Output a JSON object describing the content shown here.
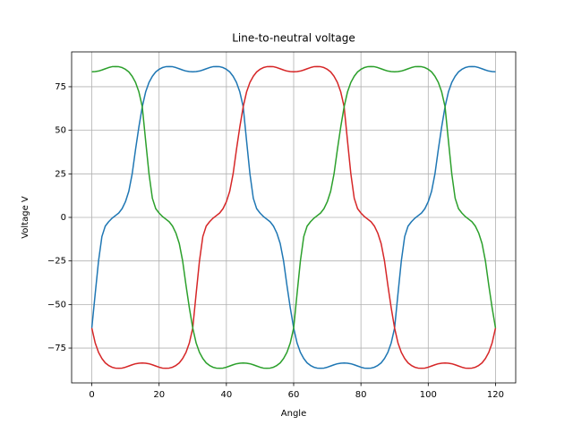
{
  "chart_data": {
    "type": "line",
    "title": "Line-to-neutral voltage",
    "x_label": "Angle",
    "y_label": "Voltage V",
    "x": [
      0,
      1,
      2,
      3,
      4,
      5,
      6,
      7,
      8,
      9,
      10,
      11,
      12,
      13,
      14,
      15,
      16,
      17,
      18,
      19,
      20,
      21,
      22,
      23,
      24,
      25,
      26,
      27,
      28,
      29,
      30,
      31,
      32,
      33,
      34,
      35,
      36,
      37,
      38,
      39,
      40,
      41,
      42,
      43,
      44,
      45,
      46,
      47,
      48,
      49,
      50,
      51,
      52,
      53,
      54,
      55,
      56,
      57,
      58,
      59,
      60,
      61,
      62,
      63,
      64,
      65,
      66,
      67,
      68,
      69,
      70,
      71,
      72,
      73,
      74,
      75,
      76,
      77,
      78,
      79,
      80,
      81,
      82,
      83,
      84,
      85,
      86,
      87,
      88,
      89,
      90,
      91,
      92,
      93,
      94,
      95,
      96,
      97,
      98,
      99,
      100,
      101,
      102,
      103,
      104,
      105,
      106,
      107,
      108,
      109,
      110,
      111,
      112,
      113,
      114,
      115,
      116,
      117,
      118,
      119,
      120
    ],
    "series": [
      {
        "color": "#1f77b4",
        "values": [
          -63.5,
          -44,
          -25,
          -11,
          -5,
          -2.5,
          -0.5,
          1,
          2.5,
          5,
          9,
          15,
          25,
          39,
          52,
          63.5,
          72,
          77.5,
          81,
          83.5,
          85,
          86,
          86.5,
          86.6,
          86.5,
          86,
          85.3,
          84.6,
          84,
          83.7,
          83.6,
          83.7,
          84,
          84.6,
          85.3,
          86,
          86.5,
          86.6,
          86.5,
          86,
          85,
          83.5,
          81,
          77.5,
          72,
          63.5,
          44,
          25,
          11,
          5,
          2.5,
          0.5,
          -1,
          -2.5,
          -5,
          -9,
          -15,
          -25,
          -39,
          -52,
          -63.5,
          -72,
          -77.5,
          -81,
          -83.5,
          -85,
          -86,
          -86.5,
          -86.6,
          -86.5,
          -86,
          -85.3,
          -84.6,
          -84,
          -83.7,
          -83.6,
          -83.7,
          -84,
          -84.6,
          -85.3,
          -86,
          -86.5,
          -86.6,
          -86.5,
          -86,
          -85,
          -83.5,
          -81,
          -77.5,
          -72,
          -63.5,
          -44,
          -25,
          -11,
          -5,
          -2.5,
          -0.5,
          1,
          2.5,
          5,
          9,
          15,
          25,
          39,
          52,
          63.5,
          72,
          77.5,
          81,
          83.5,
          85,
          86,
          86.5,
          86.6,
          86.5,
          86,
          85.3,
          84.6,
          84,
          83.7,
          83.6
        ]
      },
      {
        "color": "#d62728",
        "values": [
          -63.5,
          -72,
          -77.5,
          -81,
          -83.5,
          -85,
          -86,
          -86.5,
          -86.6,
          -86.5,
          -86,
          -85.3,
          -84.6,
          -84,
          -83.7,
          -83.6,
          -83.7,
          -84,
          -84.6,
          -85.3,
          -86,
          -86.5,
          -86.6,
          -86.5,
          -86,
          -85,
          -83.5,
          -81,
          -77.5,
          -72,
          -63.5,
          -44,
          -25,
          -11,
          -5,
          -2.5,
          -0.5,
          1,
          2.5,
          5,
          9,
          15,
          25,
          39,
          52,
          63.5,
          72,
          77.5,
          81,
          83.5,
          85,
          86,
          86.5,
          86.6,
          86.5,
          86,
          85.3,
          84.6,
          84,
          83.7,
          83.6,
          83.7,
          84,
          84.6,
          85.3,
          86,
          86.5,
          86.6,
          86.5,
          86,
          85,
          83.5,
          81,
          77.5,
          72,
          63.5,
          44,
          25,
          11,
          5,
          2.5,
          0.5,
          -1,
          -2.5,
          -5,
          -9,
          -15,
          -25,
          -39,
          -52,
          -63.5,
          -72,
          -77.5,
          -81,
          -83.5,
          -85,
          -86,
          -86.5,
          -86.6,
          -86.5,
          -86,
          -85.3,
          -84.6,
          -84,
          -83.7,
          -83.6,
          -83.7,
          -84,
          -84.6,
          -85.3,
          -86,
          -86.5,
          -86.6,
          -86.5,
          -86,
          -85,
          -83.5,
          -81,
          -77.5,
          -72,
          -63.5
        ]
      },
      {
        "color": "#2ca02c",
        "values": [
          83.6,
          83.7,
          84,
          84.6,
          85.3,
          86,
          86.5,
          86.6,
          86.5,
          86,
          85,
          83.5,
          81,
          77.5,
          72,
          63.5,
          44,
          25,
          11,
          5,
          2.5,
          0.5,
          -1,
          -2.5,
          -5,
          -9,
          -15,
          -25,
          -39,
          -52,
          -63.5,
          -72,
          -77.5,
          -81,
          -83.5,
          -85,
          -86,
          -86.5,
          -86.6,
          -86.5,
          -86,
          -85.3,
          -84.6,
          -84,
          -83.7,
          -83.6,
          -83.7,
          -84,
          -84.6,
          -85.3,
          -86,
          -86.5,
          -86.6,
          -86.5,
          -86,
          -85,
          -83.5,
          -81,
          -77.5,
          -72,
          -63.5,
          -44,
          -25,
          -11,
          -5,
          -2.5,
          -0.5,
          1,
          2.5,
          5,
          9,
          15,
          25,
          39,
          52,
          63.5,
          72,
          77.5,
          81,
          83.5,
          85,
          86,
          86.5,
          86.6,
          86.5,
          86,
          85.3,
          84.6,
          84,
          83.7,
          83.6,
          83.7,
          84,
          84.6,
          85.3,
          86,
          86.5,
          86.6,
          86.5,
          86,
          85,
          83.5,
          81,
          77.5,
          72,
          63.5,
          44,
          25,
          11,
          5,
          2.5,
          0.5,
          -1,
          -2.5,
          -5,
          -9,
          -15,
          -25,
          -39,
          -52,
          -63.5
        ]
      }
    ],
    "xlim": [
      -6,
      126
    ],
    "ylim": [
      -95,
      95
    ],
    "xticks": [
      0,
      20,
      40,
      60,
      80,
      100,
      120
    ],
    "yticks": [
      {
        "value": -75,
        "label": "−75"
      },
      {
        "value": -50,
        "label": "−50"
      },
      {
        "value": -25,
        "label": "−25"
      },
      0,
      25,
      50,
      75
    ],
    "grid": true
  }
}
